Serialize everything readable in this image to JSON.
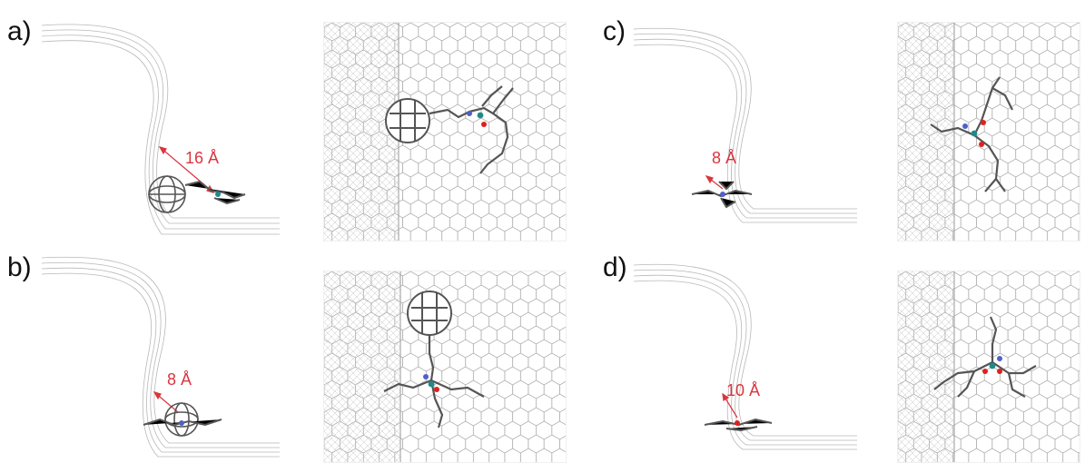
{
  "panels": {
    "a": {
      "label": "a)",
      "distance": "16 Å"
    },
    "b": {
      "label": "b)",
      "distance": "8 Å"
    },
    "c": {
      "label": "c)",
      "distance": "8 Å"
    },
    "d": {
      "label": "d)",
      "distance": "10 Å"
    }
  },
  "colors": {
    "sheet": "#b8b8b8",
    "molecule": "#5a5a5a",
    "arrow": "#d9363e",
    "oxygen": "#e02020",
    "nitrogen": "#5060c8",
    "metal": "#1f8a8a"
  }
}
